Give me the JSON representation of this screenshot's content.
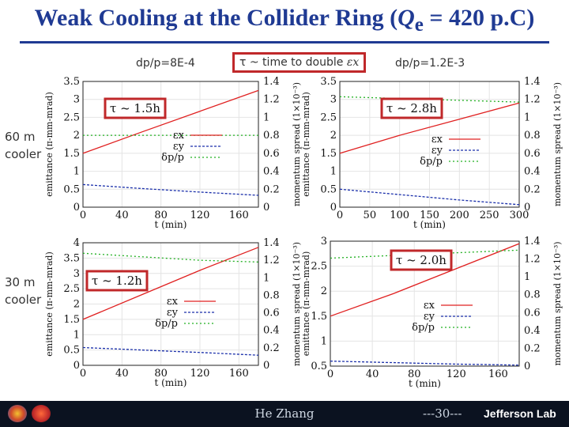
{
  "title": {
    "text_pre": "Weak Cooling at the Collider Ring (",
    "Q": "Q",
    "sub": "e",
    "text_post": " = 420 p.C)"
  },
  "labels": {
    "dp_left": "dp/p=8E-4",
    "dp_right": "dp/p=1.2E-3",
    "callout": "τ ~ time to double ",
    "callout_sym": "εx"
  },
  "rows": {
    "top": "60 m\ncooler",
    "bottom": "30 m\ncooler"
  },
  "footer": {
    "author": "He Zhang",
    "page": "---30---",
    "lab": "Jefferson Lab"
  },
  "colors": {
    "title": "#1f3a93",
    "ex": "#e02020",
    "ey": "#1a2faa",
    "dp": "#22b022",
    "box": "#c0282a"
  },
  "chart_data": [
    {
      "type": "line",
      "tau_label": "τ ~ 1.5h",
      "xlabel": "t (min)",
      "ylabel": "emittance (π-mm-mrad)",
      "y2label": "momentum spread (1×10⁻³)",
      "xlim": [
        0,
        180
      ],
      "ylim": [
        0,
        3.5
      ],
      "y2lim": [
        0,
        1.4
      ],
      "xticks": [
        0,
        40,
        80,
        120,
        160
      ],
      "yticks": [
        0,
        0.5,
        1,
        1.5,
        2,
        2.5,
        3,
        3.5
      ],
      "y2ticks": [
        0,
        0.2,
        0.4,
        0.6,
        0.8,
        1,
        1.2,
        1.4
      ],
      "legend": [
        "εx",
        "εy",
        "δp/p"
      ],
      "series": [
        {
          "name": "εx",
          "axis": "left",
          "x": [
            0,
            60,
            120,
            180
          ],
          "values": [
            1.5,
            2.09,
            2.67,
            3.25
          ]
        },
        {
          "name": "εy",
          "axis": "left",
          "x": [
            0,
            60,
            120,
            180
          ],
          "values": [
            0.63,
            0.52,
            0.42,
            0.33
          ]
        },
        {
          "name": "δp/p",
          "axis": "right",
          "x": [
            0,
            60,
            120,
            180
          ],
          "values": [
            0.8,
            0.8,
            0.8,
            0.8
          ]
        }
      ]
    },
    {
      "type": "line",
      "tau_label": "τ ~ 2.8h",
      "xlabel": "t (min)",
      "ylabel": "emittance (π-mm-mrad)",
      "y2label": "momentum spread (1×10⁻³)",
      "xlim": [
        0,
        300
      ],
      "ylim": [
        0,
        3.5
      ],
      "y2lim": [
        0,
        1.4
      ],
      "xticks": [
        0,
        50,
        100,
        150,
        200,
        250,
        300
      ],
      "yticks": [
        0,
        0.5,
        1,
        1.5,
        2,
        2.5,
        3,
        3.5
      ],
      "y2ticks": [
        0,
        0.2,
        0.4,
        0.6,
        0.8,
        1,
        1.2,
        1.4
      ],
      "legend": [
        "εx",
        "εy",
        "δp/p"
      ],
      "series": [
        {
          "name": "εx",
          "axis": "left",
          "x": [
            0,
            100,
            200,
            300
          ],
          "values": [
            1.5,
            2.0,
            2.45,
            2.9
          ]
        },
        {
          "name": "εy",
          "axis": "left",
          "x": [
            0,
            100,
            200,
            300
          ],
          "values": [
            0.5,
            0.35,
            0.2,
            0.07
          ]
        },
        {
          "name": "δp/p",
          "axis": "right",
          "x": [
            0,
            100,
            200,
            300
          ],
          "values": [
            1.23,
            1.21,
            1.19,
            1.17
          ]
        }
      ]
    },
    {
      "type": "line",
      "tau_label": "τ ~ 1.2h",
      "xlabel": "t (min)",
      "ylabel": "emittance (π-mm-mrad)",
      "y2label": "momentum spread (1×10⁻³)",
      "xlim": [
        0,
        180
      ],
      "ylim": [
        0,
        4
      ],
      "y2lim": [
        0,
        1.4
      ],
      "xticks": [
        0,
        40,
        80,
        120,
        160
      ],
      "yticks": [
        0,
        0.5,
        1,
        1.5,
        2,
        2.5,
        3,
        3.5,
        4
      ],
      "y2ticks": [
        0,
        0.2,
        0.4,
        0.6,
        0.8,
        1,
        1.2,
        1.4
      ],
      "legend": [
        "εx",
        "εy",
        "δp/p"
      ],
      "series": [
        {
          "name": "εx",
          "axis": "left",
          "x": [
            0,
            60,
            120,
            180
          ],
          "values": [
            1.5,
            2.3,
            3.1,
            3.85
          ]
        },
        {
          "name": "εy",
          "axis": "left",
          "x": [
            0,
            60,
            120,
            180
          ],
          "values": [
            0.58,
            0.5,
            0.42,
            0.33
          ]
        },
        {
          "name": "δp/p",
          "axis": "right",
          "x": [
            0,
            60,
            120,
            180
          ],
          "values": [
            1.28,
            1.24,
            1.2,
            1.18
          ]
        }
      ]
    },
    {
      "type": "line",
      "tau_label": "τ ~ 2.0h",
      "xlabel": "t (min)",
      "ylabel": "emittance (π-mm-mrad)",
      "y2label": "momentum spread (1×10⁻³)",
      "xlim": [
        0,
        180
      ],
      "ylim": [
        0.5,
        3
      ],
      "y2lim": [
        0,
        1.4
      ],
      "xticks": [
        0,
        40,
        80,
        120,
        160
      ],
      "yticks": [
        0.5,
        1,
        1.5,
        2,
        2.5,
        3
      ],
      "y2ticks": [
        0,
        0.2,
        0.4,
        0.6,
        0.8,
        1,
        1.2,
        1.4
      ],
      "legend": [
        "εx",
        "εy",
        "δp/p"
      ],
      "series": [
        {
          "name": "εx",
          "axis": "left",
          "x": [
            0,
            60,
            120,
            180
          ],
          "values": [
            1.5,
            1.95,
            2.45,
            2.95
          ]
        },
        {
          "name": "εy",
          "axis": "left",
          "x": [
            0,
            60,
            120,
            180
          ],
          "values": [
            0.6,
            0.57,
            0.54,
            0.52
          ]
        },
        {
          "name": "δp/p",
          "axis": "right",
          "x": [
            0,
            60,
            120,
            180
          ],
          "values": [
            1.21,
            1.24,
            1.27,
            1.3
          ]
        }
      ]
    }
  ]
}
